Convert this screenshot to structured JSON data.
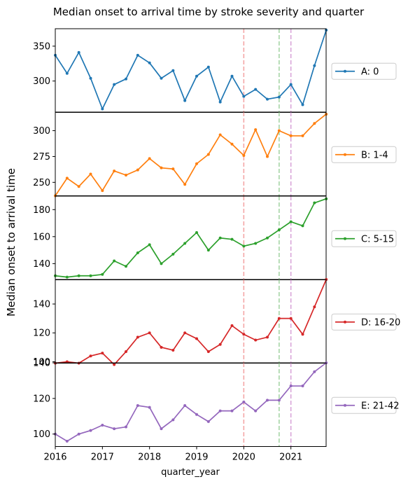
{
  "chart_data": {
    "type": "line",
    "title": "Median onset to arrival time by stroke severity and quarter",
    "ylabel": "Median onset to arrival time",
    "xlabel": "quarter_year",
    "x_range": [
      "2016-01-01",
      "2021-10-01"
    ],
    "x_ticks": [
      "2016",
      "2017",
      "2018",
      "2019",
      "2020",
      "2021"
    ],
    "x": [
      "2016Q1",
      "2016Q2",
      "2016Q3",
      "2016Q4",
      "2017Q1",
      "2017Q2",
      "2017Q3",
      "2017Q4",
      "2018Q1",
      "2018Q2",
      "2018Q3",
      "2018Q4",
      "2019Q1",
      "2019Q2",
      "2019Q3",
      "2019Q4",
      "2020Q1",
      "2020Q2",
      "2020Q3",
      "2020Q4",
      "2021Q1",
      "2021Q2",
      "2021Q3",
      "2021Q4"
    ],
    "vertical_lines": [
      {
        "x": "2020-01-01",
        "color": "#f4a6a6"
      },
      {
        "x": "2020-10-01",
        "color": "#a6d5a6"
      },
      {
        "x": "2021-01-01",
        "color": "#d9a6d9"
      }
    ],
    "grid": false,
    "legend_placement": "right of each panel",
    "series": [
      {
        "name": "A: 0",
        "color": "#1f77b4",
        "ylim": [
          255,
          375
        ],
        "yticks": [
          300,
          350
        ],
        "values": [
          337,
          311,
          341,
          304,
          260,
          295,
          303,
          337,
          326,
          304,
          315,
          272,
          307,
          320,
          270,
          307,
          278,
          288,
          274,
          277,
          295,
          266,
          322,
          373
        ]
      },
      {
        "name": "B: 1-4",
        "color": "#ff7f0e",
        "ylim": [
          237,
          318
        ],
        "yticks": [
          250,
          275,
          300
        ],
        "values": [
          237,
          254,
          246,
          258,
          242,
          261,
          257,
          262,
          273,
          264,
          263,
          248,
          268,
          277,
          296,
          287,
          276,
          301,
          275,
          300,
          295,
          295,
          307,
          316
        ]
      },
      {
        "name": "C: 5-15",
        "color": "#2ca02c",
        "ylim": [
          128,
          190
        ],
        "yticks": [
          140,
          160,
          180
        ],
        "values": [
          131,
          130,
          131,
          131,
          132,
          142,
          138,
          148,
          154,
          140,
          147,
          155,
          163,
          150,
          159,
          158,
          153,
          155,
          159,
          165,
          171,
          168,
          185,
          188
        ]
      },
      {
        "name": "D: 16-20",
        "color": "#d62728",
        "ylim": [
          99,
          157
        ],
        "yticks": [
          100,
          120,
          140
        ],
        "values": [
          99,
          100,
          99,
          104,
          106,
          98,
          107,
          117,
          120,
          110,
          108,
          120,
          116,
          107,
          112,
          125,
          119,
          115,
          117,
          130,
          130,
          119,
          138,
          157
        ]
      },
      {
        "name": "E: 21-42",
        "color": "#9467bd",
        "ylim": [
          93,
          140
        ],
        "yticks": [
          100,
          120,
          140
        ],
        "values": [
          100,
          96,
          100,
          102,
          105,
          103,
          104,
          116,
          115,
          103,
          108,
          116,
          111,
          107,
          113,
          113,
          118,
          113,
          119,
          119,
          127,
          127,
          135,
          140
        ]
      }
    ]
  }
}
